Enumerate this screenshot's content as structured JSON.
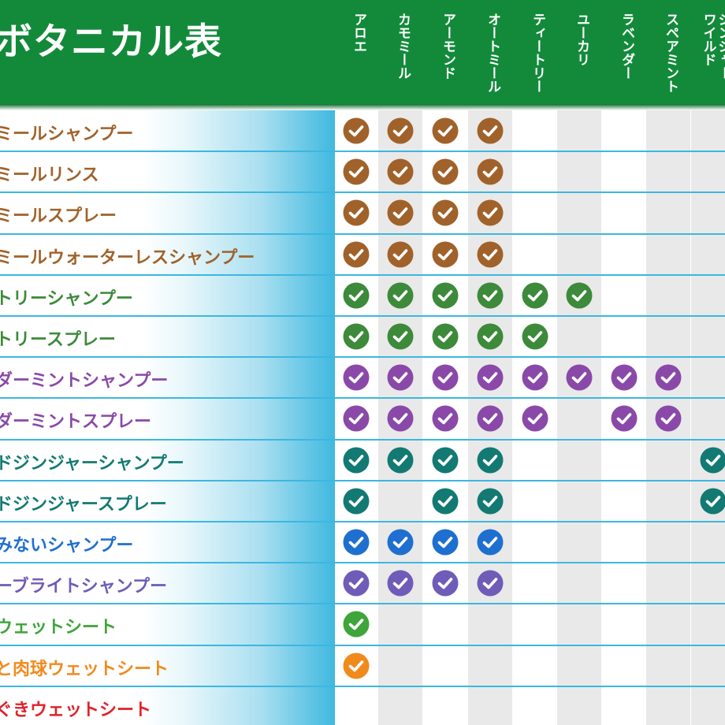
{
  "header": {
    "title": "ボタニカル表",
    "columns": [
      "アロエ",
      "カモミール",
      "アーモンド",
      "オートミール",
      "ティートリー",
      "ユーカリ",
      "ラベンダー",
      "スペアミント",
      "ジンジャー\nワイルド"
    ]
  },
  "colors": {
    "header_green": "#138a3a",
    "row_divider": "#3cb7e0",
    "stripe_gray": "#e9e9e9"
  },
  "rows": [
    {
      "label": "ミールシャンプー",
      "color": "#a0622a",
      "checks": [
        1,
        1,
        1,
        1,
        0,
        0,
        0,
        0,
        0
      ]
    },
    {
      "label": "ミールリンス",
      "color": "#a0622a",
      "checks": [
        1,
        1,
        1,
        1,
        0,
        0,
        0,
        0,
        0
      ]
    },
    {
      "label": "ミールスプレー",
      "color": "#a0622a",
      "checks": [
        1,
        1,
        1,
        1,
        0,
        0,
        0,
        0,
        0
      ]
    },
    {
      "label": "ミールウォーターレスシャンプー",
      "color": "#a0622a",
      "checks": [
        1,
        1,
        1,
        1,
        0,
        0,
        0,
        0,
        0
      ]
    },
    {
      "label": "トリーシャンプー",
      "color": "#3c8a3a",
      "checks": [
        1,
        1,
        1,
        1,
        1,
        1,
        0,
        0,
        0
      ]
    },
    {
      "label": "トリースプレー",
      "color": "#3c8a3a",
      "checks": [
        1,
        1,
        1,
        1,
        1,
        0,
        0,
        0,
        0
      ]
    },
    {
      "label": "ダーミントシャンプー",
      "color": "#8a49a8",
      "checks": [
        1,
        1,
        1,
        1,
        1,
        1,
        1,
        1,
        0
      ]
    },
    {
      "label": "ダーミントスプレー",
      "color": "#8a49a8",
      "checks": [
        1,
        1,
        1,
        1,
        1,
        0,
        1,
        1,
        0
      ]
    },
    {
      "label": "ドジンジャーシャンプー",
      "color": "#127a72",
      "checks": [
        1,
        1,
        1,
        1,
        0,
        0,
        0,
        0,
        1
      ]
    },
    {
      "label": "ドジンジャースプレー",
      "color": "#127a72",
      "checks": [
        1,
        0,
        1,
        1,
        0,
        0,
        0,
        0,
        1
      ]
    },
    {
      "label": "みないシャンプー",
      "color": "#1f6fd0",
      "checks": [
        1,
        1,
        1,
        1,
        0,
        0,
        0,
        0,
        0
      ]
    },
    {
      "label": "ーブライトシャンプー",
      "color": "#6e5cb8",
      "checks": [
        1,
        1,
        1,
        1,
        0,
        0,
        0,
        0,
        0
      ]
    },
    {
      "label": "ウェットシート",
      "color": "#3ea53a",
      "checks": [
        1,
        0,
        0,
        0,
        0,
        0,
        0,
        0,
        0
      ]
    },
    {
      "label": "と肉球ウェットシート",
      "color": "#f08a1c",
      "checks": [
        1,
        0,
        0,
        0,
        0,
        0,
        0,
        0,
        0
      ]
    },
    {
      "label": "ぐきウェットシート",
      "color": "#e0222a",
      "checks": [
        0,
        0,
        0,
        0,
        0,
        0,
        0,
        0,
        0
      ]
    }
  ]
}
